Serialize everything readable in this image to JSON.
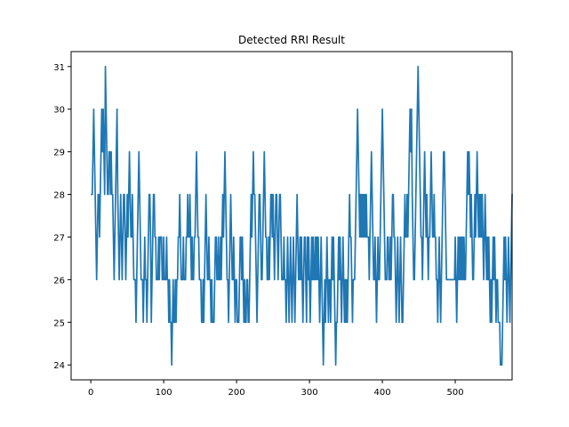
{
  "chart_data": {
    "type": "line",
    "title": "Detected RRI Result",
    "xlabel": "",
    "ylabel": "",
    "xlim": [
      -27,
      578
    ],
    "ylim": [
      23.65,
      31.35
    ],
    "xticks": [
      0,
      100,
      200,
      300,
      400,
      500
    ],
    "yticks": [
      24,
      25,
      26,
      27,
      28,
      29,
      30,
      31
    ],
    "grid": false,
    "legend": "none",
    "series": [
      {
        "color": "#1f77b4",
        "x_start": 0,
        "values": [
          28,
          28,
          28,
          29,
          30,
          29,
          28,
          27,
          26,
          27,
          28,
          28,
          27,
          28,
          29,
          30,
          29,
          30,
          29,
          28,
          31,
          30,
          29,
          28,
          28,
          29,
          29,
          28,
          29,
          28,
          28,
          27,
          26,
          27,
          28,
          29,
          30,
          28,
          27,
          26,
          27,
          28,
          27,
          26,
          27,
          28,
          28,
          27,
          26,
          27,
          28,
          27,
          28,
          29,
          28,
          27,
          27,
          28,
          27,
          26,
          26,
          26,
          25,
          26,
          27,
          28,
          29,
          28,
          27,
          26,
          26,
          26,
          25,
          26,
          27,
          26,
          26,
          25,
          26,
          27,
          28,
          28,
          27,
          25,
          26,
          27,
          28,
          28,
          27,
          27,
          26,
          26,
          26,
          27,
          26,
          27,
          27,
          27,
          26,
          26,
          27,
          26,
          26,
          26,
          27,
          26,
          26,
          25,
          26,
          25,
          25,
          24,
          25,
          26,
          25,
          25,
          26,
          25,
          26,
          26,
          27,
          27,
          28,
          27,
          26,
          26,
          26,
          27,
          26,
          26,
          26,
          27,
          27,
          28,
          27,
          27,
          28,
          27,
          26,
          27,
          26,
          26,
          27,
          27,
          28,
          29,
          28,
          27,
          27,
          26,
          26,
          26,
          25,
          25,
          26,
          25,
          26,
          27,
          28,
          27,
          26,
          26,
          27,
          26,
          26,
          25,
          26,
          25,
          25,
          25,
          26,
          27,
          27,
          26,
          26,
          27,
          26,
          26,
          27,
          26,
          27,
          28,
          27,
          28,
          29,
          28,
          27,
          26,
          26,
          25,
          26,
          27,
          28,
          27,
          26,
          26,
          27,
          26,
          25,
          26,
          26,
          25,
          25,
          25,
          26,
          27,
          27,
          26,
          27,
          26,
          25,
          26,
          25,
          25,
          26,
          26,
          25,
          25,
          26,
          27,
          28,
          27,
          28,
          29,
          28,
          28,
          27,
          26,
          25,
          26,
          27,
          28,
          28,
          27,
          26,
          26,
          27,
          28,
          29,
          28,
          27,
          27,
          26,
          26,
          27,
          26,
          27,
          28,
          28,
          27,
          28,
          27,
          26,
          27,
          28,
          28,
          27,
          26,
          27,
          28,
          28,
          27,
          26,
          26,
          26,
          27,
          26,
          26,
          25,
          26,
          27,
          26,
          25,
          26,
          27,
          26,
          25,
          26,
          27,
          26,
          25,
          26,
          27,
          28,
          27,
          26,
          26,
          27,
          26,
          27,
          26,
          25,
          26,
          27,
          27,
          26,
          25,
          27,
          26,
          27,
          26,
          25,
          26,
          27,
          26,
          27,
          26,
          26,
          27,
          26,
          27,
          26,
          27,
          26,
          25,
          26,
          27,
          26,
          25,
          24,
          25,
          26,
          25,
          26,
          27,
          26,
          25,
          26,
          26,
          25,
          26,
          27,
          26,
          27,
          26,
          25,
          24,
          25,
          25,
          26,
          27,
          26,
          27,
          26,
          25,
          26,
          27,
          26,
          25,
          26,
          25,
          26,
          25,
          26,
          27,
          28,
          27,
          27,
          26,
          25,
          26,
          26,
          26,
          27,
          28,
          29,
          30,
          29,
          28,
          27,
          28,
          27,
          28,
          27,
          28,
          27,
          28,
          27,
          28,
          27,
          27,
          27,
          26,
          27,
          28,
          29,
          28,
          27,
          26,
          26,
          27,
          26,
          25,
          26,
          27,
          26,
          26,
          27,
          28,
          29,
          30,
          29,
          28,
          27,
          26,
          26,
          26,
          27,
          27,
          26,
          26,
          27,
          26,
          27,
          28,
          28,
          27,
          27,
          26,
          25,
          26,
          27,
          26,
          25,
          26,
          27,
          26,
          25,
          25,
          26,
          27,
          28,
          27,
          27,
          28,
          27,
          28,
          29,
          30,
          29,
          30,
          28,
          27,
          26,
          26,
          27,
          28,
          29,
          30,
          31,
          30,
          29,
          28,
          27,
          27,
          26,
          27,
          28,
          29,
          28,
          27,
          28,
          27,
          26,
          27,
          27,
          28,
          29,
          28,
          27,
          27,
          28,
          27,
          27,
          26,
          26,
          25,
          26,
          27,
          26,
          25,
          26,
          27,
          28,
          29,
          29,
          28,
          27,
          26,
          26,
          26,
          26,
          26,
          26,
          26,
          26,
          26,
          26,
          26,
          26,
          27,
          26,
          25,
          26,
          27,
          26,
          27,
          26,
          27,
          26,
          27,
          26,
          27,
          26,
          26,
          27,
          28,
          29,
          28,
          29,
          28,
          27,
          28,
          27,
          26,
          26,
          27,
          28,
          27,
          28,
          29,
          28,
          27,
          28,
          27,
          28,
          27,
          28,
          27,
          26,
          27,
          28,
          27,
          26,
          27,
          26,
          27,
          26,
          25,
          26,
          25,
          26,
          27,
          26,
          27,
          26,
          25,
          26,
          26,
          25,
          25,
          25,
          24,
          24,
          24,
          25,
          26,
          27,
          26,
          27,
          26,
          25,
          26,
          27,
          26,
          25,
          26,
          27,
          28,
          28
        ]
      }
    ]
  }
}
